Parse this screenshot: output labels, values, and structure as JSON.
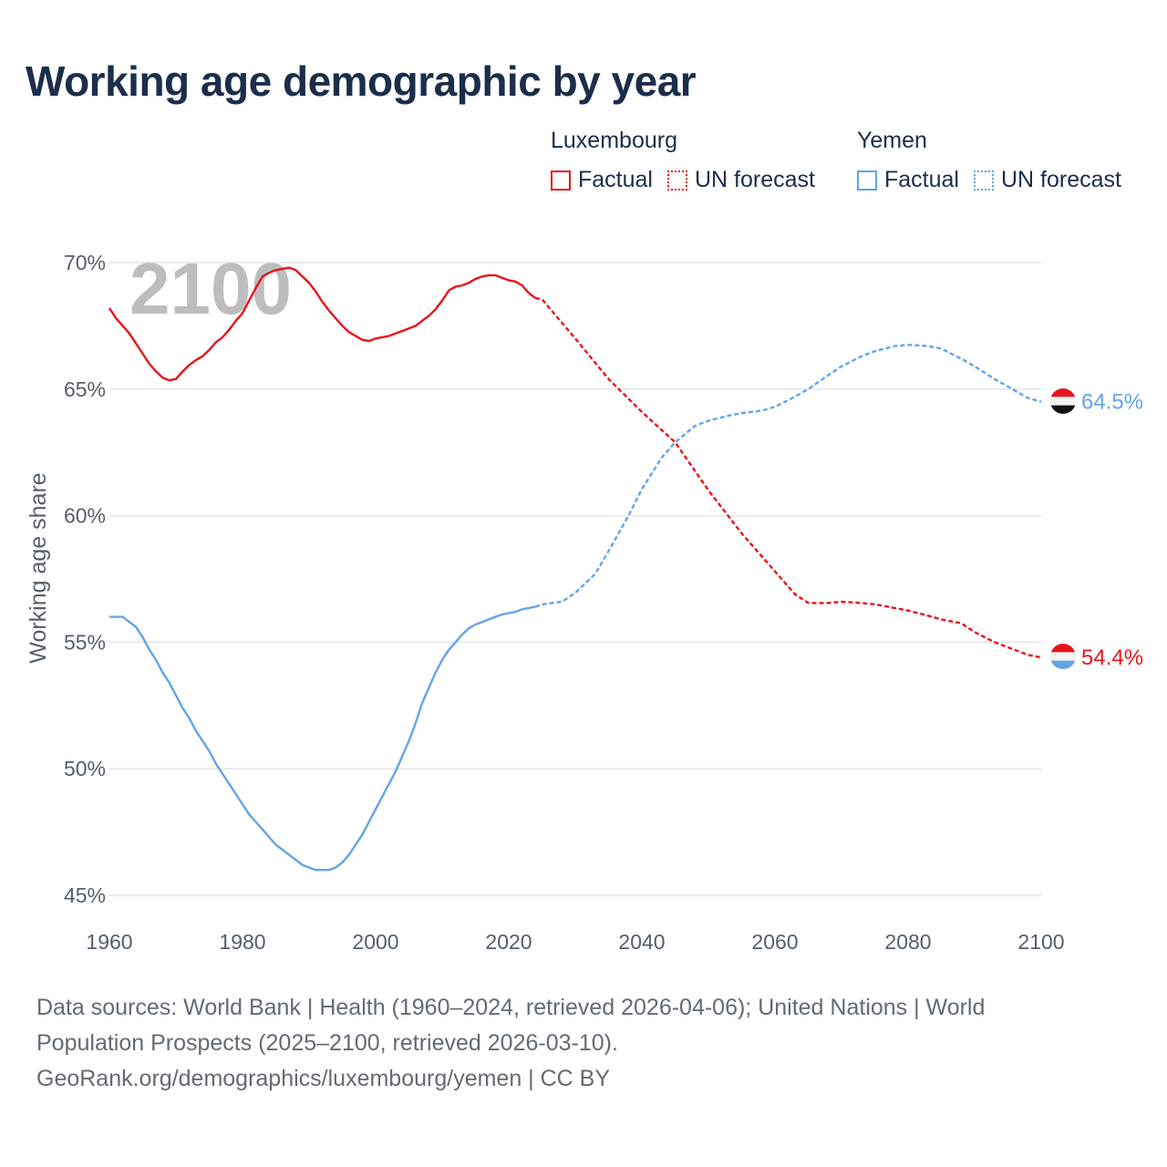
{
  "title": "Working age demographic by year",
  "legend": {
    "groups": [
      {
        "country": "Luxembourg",
        "factual_label": "Factual",
        "forecast_label": "UN forecast",
        "color": "#e8141b"
      },
      {
        "country": "Yemen",
        "factual_label": "Factual",
        "forecast_label": "UN forecast",
        "color": "#62a4e6"
      }
    ]
  },
  "footer": {
    "line1": "Data sources: World Bank | Health (1960–2024, retrieved 2026-04-06); United Nations | World",
    "line2": "Population Prospects (2025–2100, retrieved 2026-03-10).",
    "line3": "GeoRank.org/demographics/luxembourg/yemen | CC BY"
  },
  "chart_data": {
    "type": "line",
    "title": "Working age demographic by year",
    "ylabel": "Working age share",
    "xlabel": "",
    "year_overlay": "2100",
    "xlim": [
      1960,
      2100
    ],
    "ylim": [
      45,
      70
    ],
    "x_ticks": [
      1960,
      1980,
      2000,
      2020,
      2040,
      2060,
      2080,
      2100
    ],
    "x_tick_labels": [
      "1960",
      "1980",
      "2000",
      "2020",
      "2040",
      "2060",
      "2080",
      "2100"
    ],
    "y_ticks": [
      45,
      50,
      55,
      60,
      65,
      70
    ],
    "y_tick_labels": [
      "45%",
      "50%",
      "55%",
      "60%",
      "65%",
      "70%"
    ],
    "grid": true,
    "factual_end_year": 2024,
    "series": [
      {
        "name": "Luxembourg",
        "color": "#e8141b",
        "end_label": "54.4%",
        "x": [
          1960,
          1961,
          1962,
          1963,
          1964,
          1965,
          1966,
          1967,
          1968,
          1969,
          1970,
          1971,
          1972,
          1973,
          1974,
          1975,
          1976,
          1977,
          1978,
          1979,
          1980,
          1981,
          1982,
          1983,
          1984,
          1985,
          1986,
          1987,
          1988,
          1989,
          1990,
          1991,
          1992,
          1993,
          1994,
          1995,
          1996,
          1997,
          1998,
          1999,
          2000,
          2001,
          2002,
          2003,
          2004,
          2005,
          2006,
          2007,
          2008,
          2009,
          2010,
          2011,
          2012,
          2013,
          2014,
          2015,
          2016,
          2017,
          2018,
          2019,
          2020,
          2021,
          2022,
          2023,
          2024,
          2025,
          2030,
          2035,
          2040,
          2045,
          2050,
          2055,
          2060,
          2063,
          2065,
          2068,
          2070,
          2073,
          2075,
          2078,
          2080,
          2083,
          2085,
          2088,
          2090,
          2093,
          2095,
          2098,
          2100
        ],
        "values": [
          68.2,
          67.8,
          67.5,
          67.2,
          66.8,
          66.4,
          66.0,
          65.7,
          65.45,
          65.35,
          65.4,
          65.7,
          65.95,
          66.15,
          66.3,
          66.55,
          66.85,
          67.05,
          67.35,
          67.7,
          68.0,
          68.5,
          69.0,
          69.45,
          69.6,
          69.7,
          69.75,
          69.8,
          69.7,
          69.45,
          69.2,
          68.85,
          68.45,
          68.1,
          67.8,
          67.5,
          67.25,
          67.1,
          66.95,
          66.9,
          67.0,
          67.05,
          67.1,
          67.2,
          67.3,
          67.4,
          67.5,
          67.7,
          67.9,
          68.15,
          68.5,
          68.9,
          69.05,
          69.1,
          69.2,
          69.35,
          69.45,
          69.5,
          69.5,
          69.4,
          69.3,
          69.25,
          69.1,
          68.8,
          68.6,
          68.55,
          67.0,
          65.4,
          64.1,
          62.9,
          61.0,
          59.3,
          57.8,
          56.9,
          56.55,
          56.55,
          56.6,
          56.55,
          56.5,
          56.35,
          56.25,
          56.05,
          55.9,
          55.75,
          55.4,
          55.0,
          54.8,
          54.5,
          54.4
        ]
      },
      {
        "name": "Yemen",
        "color": "#62a4e6",
        "end_label": "64.5%",
        "x": [
          1960,
          1961,
          1962,
          1963,
          1964,
          1965,
          1966,
          1967,
          1968,
          1969,
          1970,
          1971,
          1972,
          1973,
          1974,
          1975,
          1976,
          1977,
          1978,
          1979,
          1980,
          1981,
          1982,
          1983,
          1984,
          1985,
          1986,
          1987,
          1988,
          1989,
          1990,
          1991,
          1992,
          1993,
          1994,
          1995,
          1996,
          1997,
          1998,
          1999,
          2000,
          2001,
          2002,
          2003,
          2004,
          2005,
          2006,
          2007,
          2008,
          2009,
          2010,
          2011,
          2012,
          2013,
          2014,
          2015,
          2016,
          2017,
          2018,
          2019,
          2020,
          2021,
          2022,
          2023,
          2024,
          2025,
          2028,
          2030,
          2033,
          2035,
          2038,
          2040,
          2043,
          2045,
          2048,
          2050,
          2053,
          2055,
          2058,
          2060,
          2063,
          2065,
          2068,
          2070,
          2073,
          2075,
          2078,
          2080,
          2083,
          2085,
          2088,
          2090,
          2093,
          2095,
          2098,
          2100
        ],
        "values": [
          56.0,
          56.0,
          56.0,
          55.8,
          55.6,
          55.2,
          54.7,
          54.3,
          53.8,
          53.4,
          52.9,
          52.4,
          52.0,
          51.5,
          51.1,
          50.7,
          50.2,
          49.8,
          49.4,
          49.0,
          48.6,
          48.2,
          47.9,
          47.6,
          47.3,
          47.0,
          46.8,
          46.6,
          46.4,
          46.2,
          46.1,
          46.0,
          46.0,
          46.0,
          46.1,
          46.3,
          46.6,
          47.0,
          47.4,
          47.9,
          48.4,
          48.9,
          49.4,
          49.9,
          50.5,
          51.1,
          51.8,
          52.6,
          53.2,
          53.8,
          54.3,
          54.7,
          55.0,
          55.3,
          55.55,
          55.7,
          55.8,
          55.9,
          56.0,
          56.1,
          56.15,
          56.2,
          56.3,
          56.35,
          56.4,
          56.5,
          56.6,
          56.95,
          57.7,
          58.6,
          60.0,
          61.05,
          62.3,
          62.9,
          63.55,
          63.75,
          63.95,
          64.05,
          64.15,
          64.3,
          64.7,
          65.0,
          65.55,
          65.9,
          66.3,
          66.5,
          66.7,
          66.75,
          66.7,
          66.6,
          66.2,
          65.9,
          65.4,
          65.1,
          64.65,
          64.5
        ]
      }
    ]
  }
}
